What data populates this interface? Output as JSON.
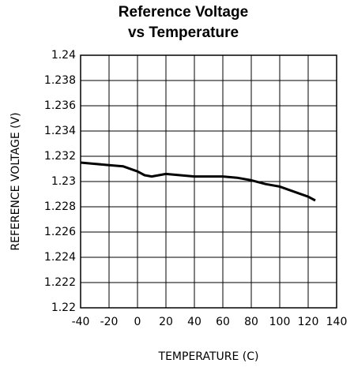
{
  "chart_data": {
    "type": "line",
    "title": [
      "Reference Voltage",
      "vs Temperature"
    ],
    "xlabel": "TEMPERATURE (C)",
    "ylabel": "REFERENCE VOLTAGE (V)",
    "x": [
      -40,
      -30,
      -20,
      -10,
      0,
      5,
      10,
      20,
      30,
      40,
      50,
      60,
      70,
      80,
      90,
      100,
      110,
      120,
      125
    ],
    "series": [
      {
        "name": "Reference Voltage",
        "color": "#000000",
        "values": [
          1.2315,
          1.2314,
          1.2313,
          1.2312,
          1.2308,
          1.2305,
          1.2304,
          1.2306,
          1.2305,
          1.2304,
          1.2304,
          1.2304,
          1.2303,
          1.2301,
          1.2298,
          1.2296,
          1.2292,
          1.2288,
          1.2285
        ]
      }
    ],
    "xlim": [
      -40,
      140
    ],
    "xticks": [
      -40,
      -20,
      0,
      20,
      40,
      60,
      80,
      100,
      120,
      140
    ],
    "ylim": [
      1.22,
      1.24
    ],
    "yticks": [
      1.22,
      1.222,
      1.224,
      1.226,
      1.228,
      1.23,
      1.232,
      1.234,
      1.236,
      1.238,
      1.24
    ],
    "grid": true
  }
}
